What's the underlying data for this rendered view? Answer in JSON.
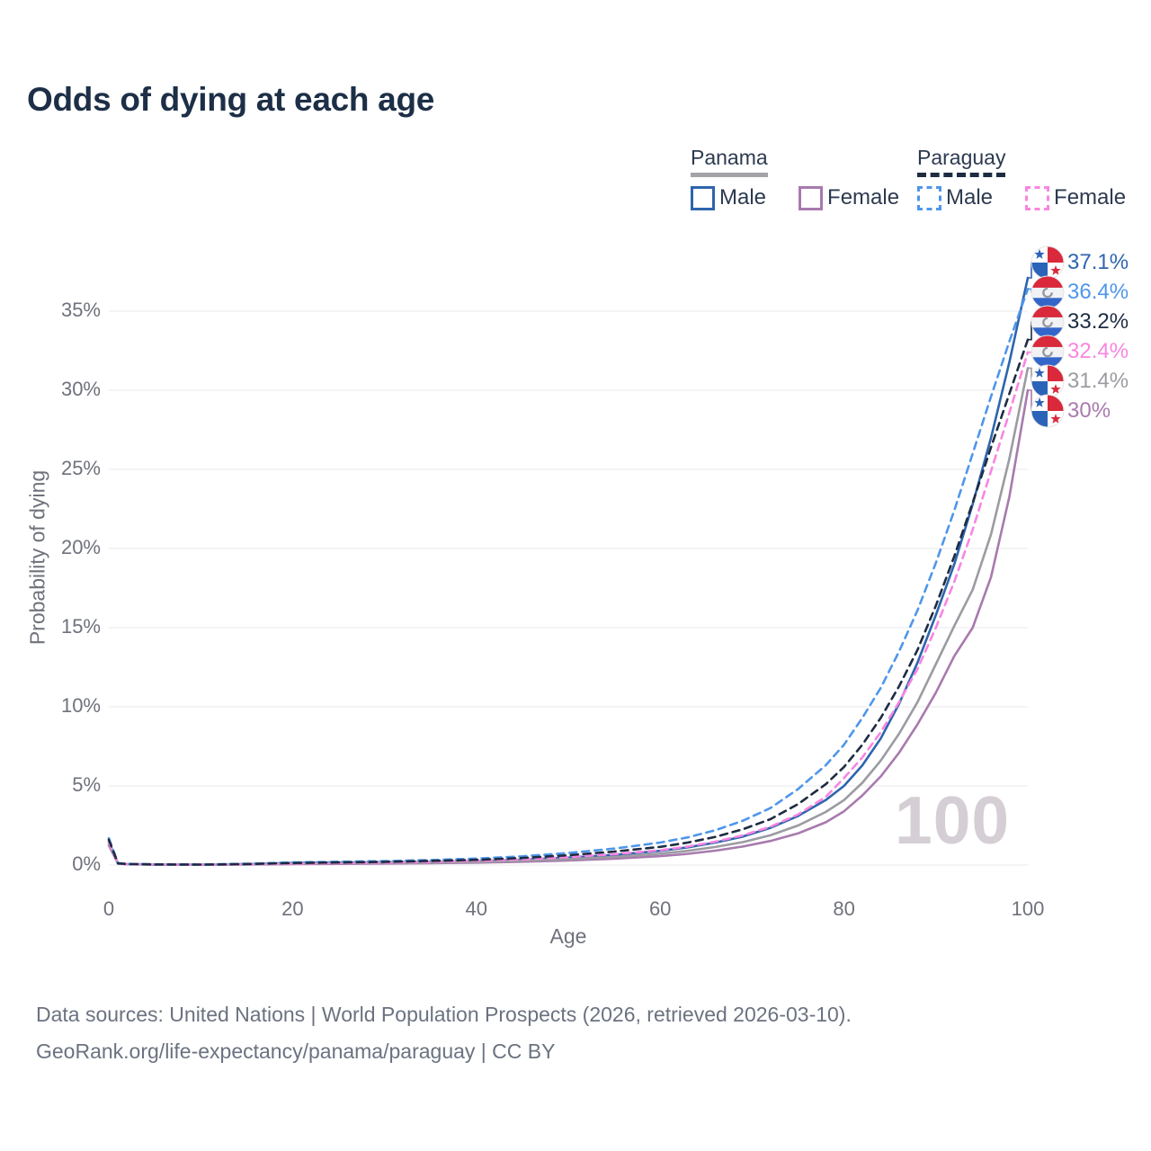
{
  "title": "Odds of dying at each age",
  "legend": {
    "groups": [
      {
        "label": "Panama",
        "line_style": "solid",
        "underline_color": "#a3a3a8",
        "items": [
          {
            "label": "Male",
            "color": "#2e65ad"
          },
          {
            "label": "Female",
            "color": "#a87aae"
          }
        ]
      },
      {
        "label": "Paraguay",
        "line_style": "dashed",
        "underline_color": "#1e2c42",
        "items": [
          {
            "label": "Male",
            "color": "#4f96ea"
          },
          {
            "label": "Female",
            "color": "#f985e1"
          }
        ]
      }
    ]
  },
  "chart_data": {
    "type": "line",
    "title": "Odds of dying at each age",
    "xlabel": "Age",
    "ylabel": "Probability of dying",
    "x_ticks": [
      0,
      20,
      40,
      60,
      80,
      100
    ],
    "y_tick_labels": [
      "0%",
      "5%",
      "10%",
      "15%",
      "20%",
      "25%",
      "30%",
      "35%"
    ],
    "y_tick_values": [
      0,
      5,
      10,
      15,
      20,
      25,
      30,
      35
    ],
    "xlim": [
      0,
      100
    ],
    "ylim": [
      0,
      38.5
    ],
    "grid": "horizontal",
    "legend_position": "top-right",
    "watermark": "100",
    "ages": [
      0,
      1,
      2,
      3,
      5,
      10,
      15,
      20,
      25,
      30,
      35,
      40,
      45,
      50,
      55,
      60,
      63,
      66,
      69,
      72,
      75,
      78,
      80,
      82,
      84,
      86,
      88,
      90,
      92,
      94,
      96,
      98,
      100
    ],
    "series": [
      {
        "name": "Panama male",
        "country": "panama",
        "sex": "male",
        "dash": false,
        "color": "#2e65ad",
        "end_label": "37.1%",
        "end_value": 37.1,
        "values": [
          1.5,
          0.1,
          0.06,
          0.05,
          0.035,
          0.025,
          0.06,
          0.13,
          0.16,
          0.18,
          0.21,
          0.26,
          0.34,
          0.47,
          0.64,
          0.9,
          1.12,
          1.42,
          1.8,
          2.35,
          3.1,
          4.1,
          5.0,
          6.3,
          8.0,
          10.2,
          12.8,
          15.8,
          19.0,
          22.8,
          27.0,
          31.8,
          37.1
        ]
      },
      {
        "name": "Panama female",
        "country": "panama",
        "sex": "female",
        "dash": false,
        "color": "#a87aae",
        "end_label": "30%",
        "end_value": 30,
        "values": [
          1.25,
          0.08,
          0.05,
          0.04,
          0.027,
          0.017,
          0.032,
          0.055,
          0.075,
          0.095,
          0.12,
          0.155,
          0.21,
          0.29,
          0.4,
          0.56,
          0.71,
          0.91,
          1.17,
          1.52,
          2.0,
          2.7,
          3.4,
          4.4,
          5.6,
          7.1,
          8.9,
          10.9,
          13.2,
          15.0,
          18.2,
          23.3,
          30.0
        ]
      },
      {
        "name": "Panama",
        "country": "panama",
        "sex": "both",
        "dash": false,
        "color": "#9b9ba1",
        "end_label": "31.4%",
        "end_value": 31.4,
        "values": [
          1.4,
          0.09,
          0.055,
          0.045,
          0.03,
          0.02,
          0.045,
          0.09,
          0.115,
          0.135,
          0.16,
          0.2,
          0.27,
          0.37,
          0.51,
          0.72,
          0.9,
          1.14,
          1.45,
          1.88,
          2.5,
          3.35,
          4.1,
          5.2,
          6.6,
          8.3,
          10.3,
          12.7,
          15.1,
          17.4,
          20.9,
          25.7,
          31.4
        ]
      },
      {
        "name": "Paraguay male",
        "country": "paraguay",
        "sex": "male",
        "dash": true,
        "color": "#4f96ea",
        "end_label": "36.4%",
        "end_value": 36.4,
        "values": [
          1.7,
          0.12,
          0.07,
          0.06,
          0.04,
          0.03,
          0.08,
          0.17,
          0.21,
          0.25,
          0.32,
          0.41,
          0.55,
          0.76,
          1.04,
          1.42,
          1.75,
          2.2,
          2.8,
          3.6,
          4.8,
          6.3,
          7.6,
          9.3,
          11.2,
          13.5,
          16.1,
          19.1,
          22.4,
          26.0,
          29.6,
          33.1,
          36.4
        ]
      },
      {
        "name": "Paraguay female",
        "country": "paraguay",
        "sex": "female",
        "dash": true,
        "color": "#f985e1",
        "end_label": "32.4%",
        "end_value": 32.4,
        "values": [
          1.45,
          0.1,
          0.06,
          0.05,
          0.033,
          0.023,
          0.046,
          0.09,
          0.12,
          0.155,
          0.2,
          0.27,
          0.36,
          0.5,
          0.69,
          0.94,
          1.17,
          1.48,
          1.88,
          2.42,
          3.2,
          4.3,
          5.5,
          6.8,
          8.4,
          10.3,
          12.4,
          15.0,
          17.9,
          21.2,
          24.9,
          28.6,
          32.4
        ]
      },
      {
        "name": "Paraguay",
        "country": "paraguay",
        "sex": "both",
        "dash": true,
        "color": "#1e2c42",
        "end_label": "33.2%",
        "end_value": 33.2,
        "values": [
          1.6,
          0.11,
          0.065,
          0.055,
          0.038,
          0.027,
          0.062,
          0.13,
          0.165,
          0.2,
          0.26,
          0.33,
          0.45,
          0.62,
          0.85,
          1.15,
          1.42,
          1.78,
          2.26,
          2.9,
          3.85,
          5.1,
          6.2,
          7.6,
          9.3,
          11.3,
          13.6,
          16.4,
          19.5,
          22.9,
          26.4,
          29.8,
          33.2
        ]
      }
    ],
    "flag_colors": {
      "panama_red": "#d9293b",
      "panama_blue": "#2b63b8",
      "paraguay_red": "#d9293b",
      "paraguay_blue": "#3466c9",
      "paraguay_emblem": "#939aa4"
    }
  },
  "footer": {
    "line1": "Data sources: United Nations | World Population Prospects (2026, retrieved 2026-03-10).",
    "line2": "GeoRank.org/life-expectancy/panama/paraguay | CC BY"
  }
}
